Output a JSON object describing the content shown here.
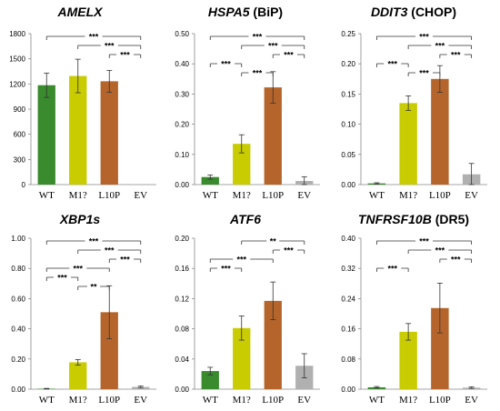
{
  "chart_data": [
    {
      "type": "bar",
      "title_italic": "AMELX",
      "title_plain": "",
      "categories": [
        "WT",
        "M1?",
        "L10P",
        "EV"
      ],
      "values": [
        1185,
        1295,
        1232,
        0
      ],
      "errors": [
        145,
        200,
        130,
        0
      ],
      "colors": [
        "#3a8a2e",
        "#c8cc00",
        "#b5652b",
        "#b0b0b0"
      ],
      "ylim": [
        0,
        1800
      ],
      "yticks": [
        0,
        300,
        600,
        900,
        1200,
        1500,
        1800
      ],
      "ytick_labels": [
        "0",
        "300",
        "600",
        "900",
        "1200",
        "1500",
        "1800"
      ],
      "brackets": [
        {
          "from": 0,
          "to": 3,
          "label": "***"
        },
        {
          "from": 1,
          "to": 3,
          "label": "***"
        },
        {
          "from": 2,
          "to": 3,
          "label": "***"
        }
      ]
    },
    {
      "type": "bar",
      "title_italic": "HSPA5",
      "title_plain": " (BiP)",
      "categories": [
        "WT",
        "M1?",
        "L10P",
        "EV"
      ],
      "values": [
        0.025,
        0.135,
        0.322,
        0.012
      ],
      "errors": [
        0.007,
        0.03,
        0.052,
        0.014
      ],
      "colors": [
        "#3a8a2e",
        "#c8cc00",
        "#b5652b",
        "#b0b0b0"
      ],
      "ylim": [
        0,
        0.5
      ],
      "yticks": [
        0,
        0.1,
        0.2,
        0.3,
        0.4,
        0.5
      ],
      "ytick_labels": [
        "0.00",
        "0.10",
        "0.20",
        "0.30",
        "0.40",
        "0.50"
      ],
      "brackets": [
        {
          "from": 0,
          "to": 3,
          "label": "***"
        },
        {
          "from": 1,
          "to": 3,
          "label": "***"
        },
        {
          "from": 2,
          "to": 3,
          "label": "***"
        },
        {
          "from": 0,
          "to": 1,
          "label": "***"
        },
        {
          "from": 1,
          "to": 2,
          "label": "***"
        }
      ]
    },
    {
      "type": "bar",
      "title_italic": "DDIT3",
      "title_plain": " (CHOP)",
      "categories": [
        "WT",
        "M1?",
        "L10P",
        "EV"
      ],
      "values": [
        0.002,
        0.135,
        0.175,
        0.017
      ],
      "errors": [
        0.001,
        0.012,
        0.022,
        0.018
      ],
      "colors": [
        "#3a8a2e",
        "#c8cc00",
        "#b5652b",
        "#b0b0b0"
      ],
      "ylim": [
        0,
        0.25
      ],
      "yticks": [
        0,
        0.05,
        0.1,
        0.15,
        0.2,
        0.25
      ],
      "ytick_labels": [
        "0.00",
        "0.05",
        "0.10",
        "0.15",
        "0.20",
        "0.25"
      ],
      "brackets": [
        {
          "from": 0,
          "to": 3,
          "label": "***"
        },
        {
          "from": 1,
          "to": 3,
          "label": "***"
        },
        {
          "from": 2,
          "to": 3,
          "label": "***"
        },
        {
          "from": 0,
          "to": 1,
          "label": "***"
        },
        {
          "from": 1,
          "to": 2,
          "label": "***"
        }
      ]
    },
    {
      "type": "bar",
      "title_italic": "XBP1s",
      "title_plain": "",
      "categories": [
        "WT",
        "M1?",
        "L10P",
        "EV"
      ],
      "values": [
        0.003,
        0.178,
        0.51,
        0.015
      ],
      "errors": [
        0.002,
        0.018,
        0.175,
        0.006
      ],
      "colors": [
        "#3a8a2e",
        "#c8cc00",
        "#b5652b",
        "#b0b0b0"
      ],
      "ylim": [
        0,
        1.0
      ],
      "yticks": [
        0,
        0.2,
        0.4,
        0.6,
        0.8,
        1.0
      ],
      "ytick_labels": [
        "0.00",
        "0.20",
        "0.40",
        "0.60",
        "0.80",
        "1.00"
      ],
      "brackets": [
        {
          "from": 0,
          "to": 3,
          "label": "***"
        },
        {
          "from": 1,
          "to": 3,
          "label": "***"
        },
        {
          "from": 2,
          "to": 3,
          "label": "***"
        },
        {
          "from": 0,
          "to": 2,
          "label": "***"
        },
        {
          "from": 1,
          "to": 2,
          "label": "**"
        },
        {
          "from": 0,
          "to": 1,
          "label": "***"
        }
      ]
    },
    {
      "type": "bar",
      "title_italic": "ATF6",
      "title_plain": "",
      "categories": [
        "WT",
        "M1?",
        "L10P",
        "EV"
      ],
      "values": [
        0.024,
        0.081,
        0.117,
        0.031
      ],
      "errors": [
        0.005,
        0.016,
        0.025,
        0.016
      ],
      "colors": [
        "#3a8a2e",
        "#c8cc00",
        "#b5652b",
        "#b0b0b0"
      ],
      "ylim": [
        0,
        0.2
      ],
      "yticks": [
        0,
        0.04,
        0.08,
        0.12,
        0.16,
        0.2
      ],
      "ytick_labels": [
        "0.00",
        "0.04",
        "0.08",
        "0.12",
        "0.16",
        "0.20"
      ],
      "brackets": [
        {
          "from": 0,
          "to": 2,
          "label": "***"
        },
        {
          "from": 1,
          "to": 3,
          "label": "**"
        },
        {
          "from": 2,
          "to": 3,
          "label": "***"
        },
        {
          "from": 0,
          "to": 1,
          "label": "***"
        }
      ]
    },
    {
      "type": "bar",
      "title_italic": "TNFRSF10B",
      "title_plain": " (DR5)",
      "categories": [
        "WT",
        "M1?",
        "L10P",
        "EV"
      ],
      "values": [
        0.005,
        0.152,
        0.215,
        0.004
      ],
      "errors": [
        0.002,
        0.022,
        0.066,
        0.002
      ],
      "colors": [
        "#3a8a2e",
        "#c8cc00",
        "#b5652b",
        "#b0b0b0"
      ],
      "ylim": [
        0,
        0.4
      ],
      "yticks": [
        0,
        0.08,
        0.16,
        0.24,
        0.32,
        0.4
      ],
      "ytick_labels": [
        "0.00",
        "0.08",
        "0.16",
        "0.24",
        "0.32",
        "0.40"
      ],
      "brackets": [
        {
          "from": 0,
          "to": 3,
          "label": "***"
        },
        {
          "from": 1,
          "to": 3,
          "label": "***"
        },
        {
          "from": 2,
          "to": 3,
          "label": "***"
        },
        {
          "from": 0,
          "to": 1,
          "label": "***"
        }
      ]
    }
  ]
}
